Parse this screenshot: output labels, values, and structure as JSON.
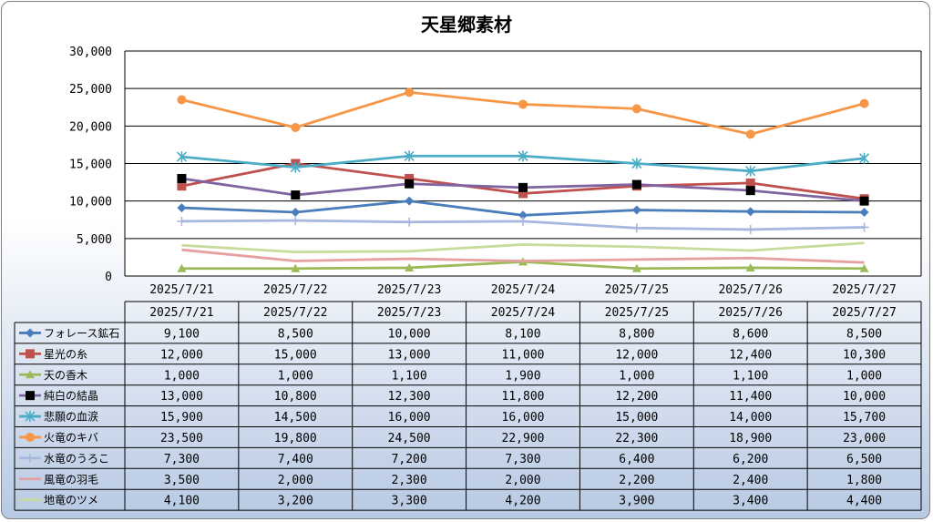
{
  "chart_data": {
    "type": "line",
    "title": "天星郷素材",
    "categories": [
      "2025/7/21",
      "2025/7/22",
      "2025/7/23",
      "2025/7/24",
      "2025/7/25",
      "2025/7/26",
      "2025/7/27"
    ],
    "ylim": [
      0,
      30000
    ],
    "yticks": [
      "0",
      "5,000",
      "10,000",
      "15,000",
      "20,000",
      "25,000",
      "30,000"
    ],
    "grid": true,
    "legend": "data-table",
    "series": [
      {
        "name": "フォレース鉱石",
        "color": "#4a7ebb",
        "marker": "diamond",
        "values": [
          9100,
          8500,
          10000,
          8100,
          8800,
          8600,
          8500
        ],
        "labels": [
          "9,100",
          "8,500",
          "10,000",
          "8,100",
          "8,800",
          "8,600",
          "8,500"
        ]
      },
      {
        "name": "星光の糸",
        "color": "#c0504d",
        "marker": "square",
        "values": [
          12000,
          15000,
          13000,
          11000,
          12000,
          12400,
          10300
        ],
        "labels": [
          "12,000",
          "15,000",
          "13,000",
          "11,000",
          "12,000",
          "12,400",
          "10,300"
        ]
      },
      {
        "name": "天の香木",
        "color": "#9bbb59",
        "marker": "triangle",
        "values": [
          1000,
          1000,
          1100,
          1900,
          1000,
          1100,
          1000
        ],
        "labels": [
          "1,000",
          "1,000",
          "1,100",
          "1,900",
          "1,000",
          "1,100",
          "1,000"
        ]
      },
      {
        "name": "純白の結晶",
        "color": "#8064a2",
        "marker": "blacksquare",
        "values": [
          13000,
          10800,
          12300,
          11800,
          12200,
          11400,
          10000
        ],
        "labels": [
          "13,000",
          "10,800",
          "12,300",
          "11,800",
          "12,200",
          "11,400",
          "10,000"
        ]
      },
      {
        "name": "悲願の血涙",
        "color": "#4bacc6",
        "marker": "star",
        "values": [
          15900,
          14500,
          16000,
          16000,
          15000,
          14000,
          15700
        ],
        "labels": [
          "15,900",
          "14,500",
          "16,000",
          "16,000",
          "15,000",
          "14,000",
          "15,700"
        ]
      },
      {
        "name": "火竜のキバ",
        "color": "#f79646",
        "marker": "circle",
        "values": [
          23500,
          19800,
          24500,
          22900,
          22300,
          18900,
          23000
        ],
        "labels": [
          "23,500",
          "19,800",
          "24,500",
          "22,900",
          "22,300",
          "18,900",
          "23,000"
        ]
      },
      {
        "name": "水竜のうろこ",
        "color": "#a8b7de",
        "marker": "plus",
        "values": [
          7300,
          7400,
          7200,
          7300,
          6400,
          6200,
          6500
        ],
        "labels": [
          "7,300",
          "7,400",
          "7,200",
          "7,300",
          "6,400",
          "6,200",
          "6,500"
        ]
      },
      {
        "name": "風竜の羽毛",
        "color": "#e6a0a0",
        "marker": "none",
        "values": [
          3500,
          2000,
          2300,
          2000,
          2200,
          2400,
          1800
        ],
        "labels": [
          "3,500",
          "2,000",
          "2,300",
          "2,000",
          "2,200",
          "2,400",
          "1,800"
        ]
      },
      {
        "name": "地竜のツメ",
        "color": "#c7dc9c",
        "marker": "none",
        "values": [
          4100,
          3200,
          3300,
          4200,
          3900,
          3400,
          4400
        ],
        "labels": [
          "4,100",
          "3,200",
          "3,300",
          "4,200",
          "3,900",
          "3,400",
          "4,400"
        ]
      }
    ]
  }
}
